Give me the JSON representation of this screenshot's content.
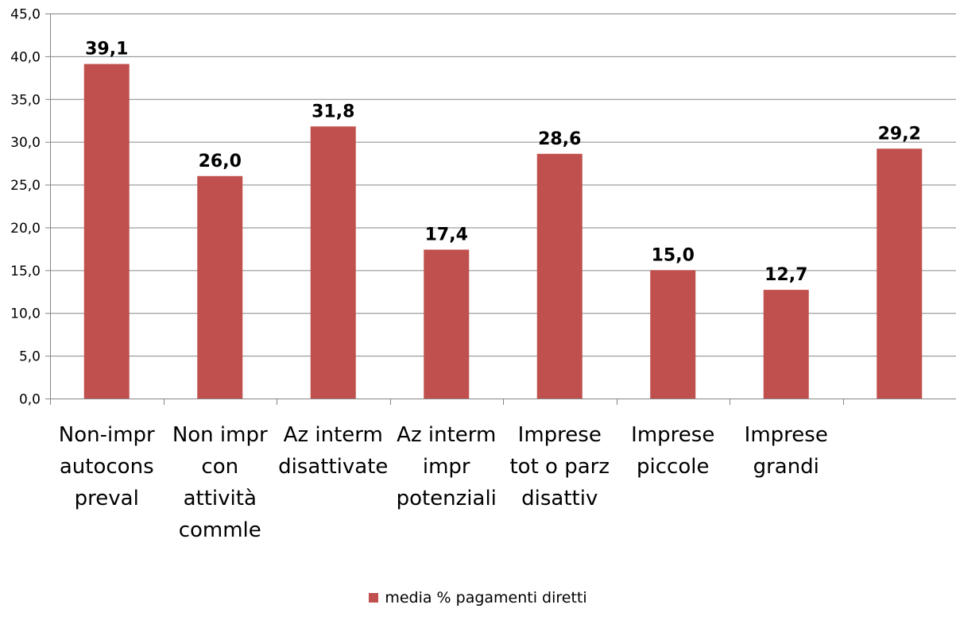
{
  "chart_data": {
    "type": "bar",
    "categories": [
      [
        "Non-impr",
        "autocons",
        "preval"
      ],
      [
        "Non impr",
        "con",
        "attività",
        "commle"
      ],
      [
        "Az interm",
        "disattivate"
      ],
      [
        "Az interm",
        "impr",
        "potenziali"
      ],
      [
        "Imprese",
        "tot o parz",
        "disattiv"
      ],
      [
        "Imprese",
        "piccole"
      ],
      [
        "Imprese",
        "grandi"
      ],
      []
    ],
    "series": [
      {
        "name": "media % pagamenti diretti",
        "values": [
          39.1,
          26.0,
          31.8,
          17.4,
          28.6,
          15.0,
          12.7,
          29.2
        ],
        "value_labels": [
          "39,1",
          "26,0",
          "31,8",
          "17,4",
          "28,6",
          "15,0",
          "12,7",
          "29,2"
        ],
        "color": "#c0504d"
      }
    ],
    "ylim": [
      0,
      45
    ],
    "yticks": [
      0,
      5,
      10,
      15,
      20,
      25,
      30,
      35,
      40,
      45
    ],
    "ytick_labels": [
      "0,0",
      "5,0",
      "10,0",
      "15,0",
      "20,0",
      "25,0",
      "30,0",
      "35,0",
      "40,0",
      "45,0"
    ],
    "grid": true,
    "legend_position": "bottom",
    "xlabel": "",
    "ylabel": "",
    "title": ""
  }
}
